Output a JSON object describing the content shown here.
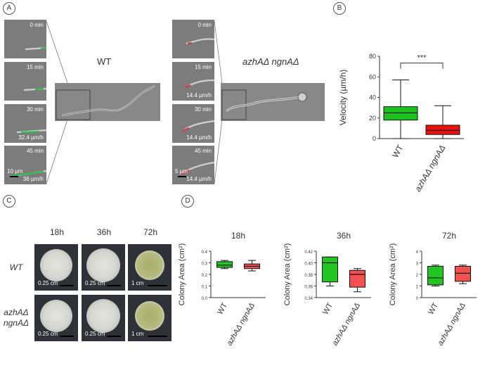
{
  "panels": {
    "a": "A",
    "b": "B",
    "c": "C",
    "d": "D"
  },
  "panelA": {
    "wt_title": "WT",
    "mut_title": "azhAΔ ngnAΔ",
    "wt_tiles": [
      {
        "time": "0 min",
        "vel": ""
      },
      {
        "time": "15 min",
        "vel": ""
      },
      {
        "time": "30 min",
        "vel": "32.4 µm/h"
      },
      {
        "time": "45 min",
        "vel": "36 µm/h"
      }
    ],
    "wt_scale": "10 µm",
    "mut_tiles": [
      {
        "time": "0 min",
        "vel": ""
      },
      {
        "time": "15 min",
        "vel": "14.4 µm/h"
      },
      {
        "time": "30 min",
        "vel": "14.4 µm/h"
      },
      {
        "time": "45 min",
        "vel": "14.4 µm/h"
      }
    ],
    "mut_scale": "5 µm",
    "trail_colors": {
      "wt": "#2fbf4a",
      "mut": "#d83434"
    }
  },
  "panelC": {
    "headers": [
      "18h",
      "36h",
      "72h"
    ],
    "rows": [
      {
        "label": "WT",
        "scales": [
          "0.25 cm",
          "0.25 cm",
          "1 cm"
        ]
      },
      {
        "label": "azhAΔ ngnAΔ",
        "scales": [
          "0.25 cm",
          "0.25 cm",
          "1 cm"
        ]
      }
    ]
  },
  "chart_data": [
    {
      "type": "box",
      "panel": "B",
      "categories": [
        "WT",
        "azhAΔ ngnAΔ"
      ],
      "ylabel": "Velocity (µm/h)",
      "ylim": [
        0,
        80
      ],
      "yticks": [
        0,
        20,
        40,
        60,
        80
      ],
      "boxes": [
        {
          "name": "WT",
          "min": 0,
          "q1": 18,
          "median": 25,
          "q3": 31,
          "max": 57,
          "color": "#1ec21e"
        },
        {
          "name": "azhAΔ ngnAΔ",
          "min": 0,
          "q1": 4,
          "median": 8,
          "q3": 13,
          "max": 32,
          "color": "#ee1111"
        }
      ],
      "annotation": "***"
    },
    {
      "type": "box",
      "panel": "D",
      "title": "18h",
      "ylabel": "Colony Area (cm²)",
      "categories": [
        "WT",
        "azhAΔ ngnAΔ"
      ],
      "ylim": [
        0,
        0.4
      ],
      "yticks": [
        0.0,
        0.1,
        0.2,
        0.3,
        0.4
      ],
      "boxes": [
        {
          "name": "WT",
          "min": 0.25,
          "q1": 0.26,
          "median": 0.28,
          "q3": 0.31,
          "max": 0.32,
          "color": "#22c522"
        },
        {
          "name": "azhAΔ ngnAΔ",
          "min": 0.23,
          "q1": 0.25,
          "median": 0.27,
          "q3": 0.29,
          "max": 0.32,
          "color": "#f45050"
        }
      ]
    },
    {
      "type": "box",
      "panel": "D",
      "title": "36h",
      "ylabel": "Colony Area (cm²)",
      "categories": [
        "WT",
        "azhAΔ ngnAΔ"
      ],
      "ylim": [
        0.34,
        0.42
      ],
      "yticks": [
        0.34,
        0.36,
        0.38,
        0.4,
        0.42
      ],
      "boxes": [
        {
          "name": "WT",
          "min": 0.36,
          "q1": 0.367,
          "median": 0.4,
          "q3": 0.41,
          "max": 0.41,
          "color": "#22c522"
        },
        {
          "name": "azhAΔ ngnAΔ",
          "min": 0.35,
          "q1": 0.358,
          "median": 0.38,
          "q3": 0.387,
          "max": 0.39,
          "color": "#f45050"
        }
      ]
    },
    {
      "type": "box",
      "panel": "D",
      "title": "72h",
      "ylabel": "Colony Area (cm²)",
      "categories": [
        "WT",
        "azhAΔ ngnAΔ"
      ],
      "ylim": [
        0,
        4
      ],
      "yticks": [
        0,
        1,
        2,
        3,
        4
      ],
      "boxes": [
        {
          "name": "WT",
          "min": 1.0,
          "q1": 1.1,
          "median": 1.7,
          "q3": 2.7,
          "max": 2.8,
          "color": "#22c522"
        },
        {
          "name": "azhAΔ ngnAΔ",
          "min": 1.2,
          "q1": 1.4,
          "median": 2.1,
          "q3": 2.7,
          "max": 2.8,
          "color": "#f45050"
        }
      ]
    }
  ]
}
